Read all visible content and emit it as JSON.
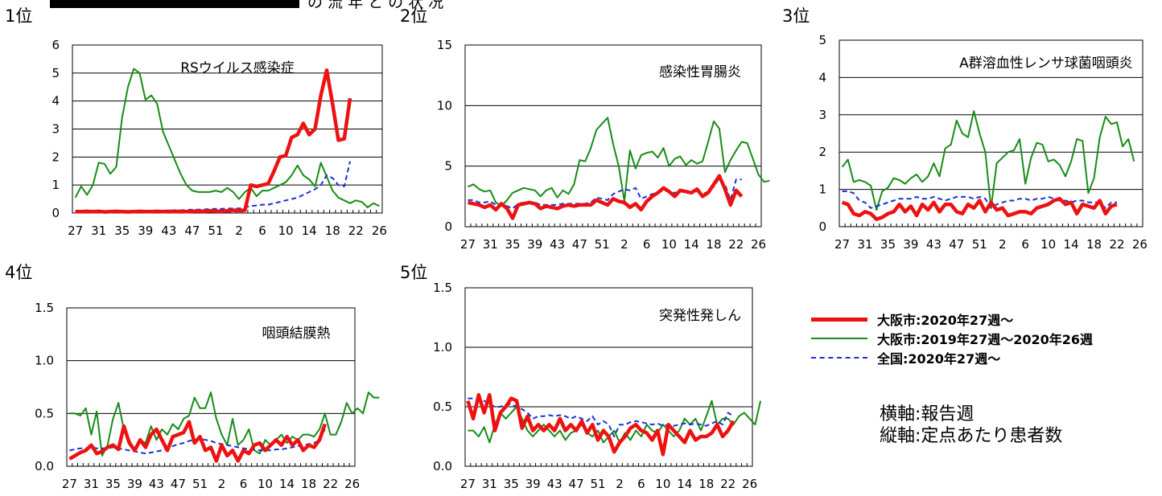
{
  "colors": {
    "osaka_current": "#ee1111",
    "osaka_previous": "#178c17",
    "national": "#1a2fd6"
  },
  "header": {
    "partial_title": "の 流 年 と の 状 况"
  },
  "x_tick_labels": [
    "27",
    "31",
    "35",
    "39",
    "43",
    "47",
    "51",
    "2",
    "6",
    "10",
    "14",
    "18",
    "22",
    "26"
  ],
  "legend": [
    {
      "series": "osaka_current",
      "label": "大阪市:2020年27週〜"
    },
    {
      "series": "osaka_previous",
      "label": "大阪市:2019年27週〜2020年26週"
    },
    {
      "series": "national",
      "label": "全国:2020年27週〜"
    }
  ],
  "axis_note": {
    "x": "横軸:報告週",
    "y": "縦軸:定点あたり患者数"
  },
  "chart_data": [
    {
      "type": "line",
      "rank": "1位",
      "title": "RSウイルス感染症",
      "ylim": [
        0,
        6
      ],
      "yticks": [
        "0",
        "1",
        "2",
        "3",
        "4",
        "5",
        "6"
      ],
      "grid": true,
      "series": [
        {
          "key": "osaka_current",
          "values": [
            0.05,
            0.05,
            0.06,
            0.05,
            0.06,
            0.04,
            0.05,
            0.06,
            0.05,
            0.04,
            0.05,
            0.06,
            0.05,
            0.05,
            0.06,
            0.05,
            0.06,
            0.05,
            0.06,
            0.05,
            0.06,
            0.07,
            0.06,
            0.08,
            0.07,
            0.06,
            0.08,
            0.1,
            0.09,
            0.1,
            1.0,
            0.95,
            1.0,
            1.05,
            1.5,
            2.0,
            2.05,
            2.7,
            2.8,
            3.2,
            2.8,
            3.0,
            4.2,
            5.1,
            3.9,
            2.6,
            2.65,
            4.1
          ]
        },
        {
          "key": "osaka_previous",
          "values": [
            0.55,
            0.95,
            0.65,
            1.0,
            1.8,
            1.75,
            1.4,
            1.65,
            3.4,
            4.5,
            5.15,
            5.0,
            4.05,
            4.2,
            3.9,
            2.9,
            2.4,
            1.9,
            1.4,
            1.0,
            0.8,
            0.75,
            0.75,
            0.75,
            0.8,
            0.75,
            0.9,
            0.75,
            0.5,
            0.75,
            0.9,
            0.6,
            0.8,
            0.8,
            0.9,
            1.0,
            1.1,
            1.35,
            1.7,
            1.35,
            1.2,
            0.95,
            1.8,
            1.3,
            0.8,
            0.55,
            0.45,
            0.35,
            0.45,
            0.4,
            0.2,
            0.35,
            0.25
          ]
        },
        {
          "key": "national",
          "values": [
            0.05,
            0.05,
            0.05,
            0.06,
            0.05,
            0.05,
            0.06,
            0.06,
            0.06,
            0.06,
            0.07,
            0.07,
            0.07,
            0.08,
            0.08,
            0.09,
            0.09,
            0.1,
            0.1,
            0.11,
            0.12,
            0.12,
            0.13,
            0.14,
            0.15,
            0.15,
            0.16,
            0.16,
            0.16,
            0.2,
            0.25,
            0.27,
            0.3,
            0.3,
            0.35,
            0.4,
            0.45,
            0.5,
            0.55,
            0.65,
            0.75,
            0.85,
            1.0,
            1.35,
            1.25,
            1.0,
            0.95,
            1.85
          ]
        }
      ]
    },
    {
      "type": "line",
      "rank": "2位",
      "title": "感染性胃腸炎",
      "ylim": [
        0,
        15
      ],
      "yticks": [
        "0",
        "5",
        "10",
        "15"
      ],
      "grid": true,
      "series": [
        {
          "key": "osaka_current",
          "values": [
            2.0,
            1.9,
            1.8,
            1.6,
            1.8,
            1.4,
            1.9,
            1.5,
            0.7,
            1.8,
            1.9,
            2.0,
            1.9,
            1.5,
            1.7,
            1.6,
            1.5,
            1.7,
            1.8,
            1.7,
            1.8,
            1.8,
            1.8,
            2.2,
            2.0,
            1.8,
            2.3,
            2.1,
            2.0,
            1.6,
            1.9,
            1.4,
            2.1,
            2.5,
            2.8,
            3.2,
            2.9,
            2.5,
            3.0,
            2.9,
            2.8,
            3.1,
            2.5,
            2.8,
            3.5,
            4.2,
            3.1,
            1.8,
            3.0,
            2.5
          ]
        },
        {
          "key": "osaka_previous",
          "values": [
            3.3,
            3.5,
            3.1,
            2.9,
            3.0,
            2.0,
            1.7,
            2.2,
            2.8,
            3.0,
            3.2,
            3.1,
            3.0,
            2.5,
            3.0,
            3.2,
            2.4,
            3.0,
            2.7,
            3.5,
            5.5,
            5.4,
            6.5,
            8.0,
            8.5,
            9.0,
            6.8,
            5.0,
            2.1,
            6.3,
            4.8,
            5.9,
            6.1,
            6.2,
            5.7,
            6.5,
            5.0,
            5.6,
            5.8,
            5.1,
            5.5,
            5.2,
            5.4,
            7.0,
            8.7,
            8.1,
            4.5,
            5.5,
            6.3,
            7.0,
            6.9,
            5.6,
            4.3,
            3.7,
            3.8
          ]
        },
        {
          "key": "national",
          "values": [
            2.2,
            2.2,
            2.0,
            2.0,
            2.1,
            1.8,
            1.9,
            1.7,
            1.5,
            1.9,
            2.0,
            2.0,
            2.0,
            1.8,
            1.8,
            1.8,
            1.8,
            1.9,
            1.9,
            1.9,
            1.9,
            1.9,
            2.0,
            2.4,
            2.3,
            2.2,
            2.7,
            2.9,
            3.1,
            3.0,
            3.2,
            2.3,
            2.5,
            2.7,
            2.8,
            3.0,
            2.9,
            2.8,
            2.9,
            2.9,
            2.8,
            2.9,
            2.7,
            2.9,
            3.3,
            4.0,
            3.5,
            2.2,
            3.9,
            3.9
          ]
        }
      ]
    },
    {
      "type": "line",
      "rank": "3位",
      "title": "A群溶血性レンサ球菌咽頭炎",
      "ylim": [
        0,
        5
      ],
      "yticks": [
        "0",
        "1",
        "2",
        "3",
        "4",
        "5"
      ],
      "grid": true,
      "series": [
        {
          "key": "osaka_current",
          "values": [
            0.65,
            0.6,
            0.35,
            0.3,
            0.4,
            0.35,
            0.2,
            0.25,
            0.35,
            0.4,
            0.6,
            0.4,
            0.55,
            0.3,
            0.6,
            0.45,
            0.65,
            0.4,
            0.6,
            0.6,
            0.4,
            0.35,
            0.6,
            0.5,
            0.7,
            0.4,
            0.65,
            0.45,
            0.5,
            0.3,
            0.35,
            0.4,
            0.4,
            0.35,
            0.5,
            0.55,
            0.6,
            0.7,
            0.75,
            0.6,
            0.65,
            0.35,
            0.6,
            0.55,
            0.5,
            0.7,
            0.35,
            0.55,
            0.6
          ]
        },
        {
          "key": "osaka_previous",
          "values": [
            1.6,
            1.8,
            1.2,
            1.25,
            1.2,
            1.1,
            0.45,
            0.95,
            1.05,
            1.3,
            1.25,
            1.15,
            1.3,
            1.4,
            1.2,
            1.35,
            1.7,
            1.35,
            2.1,
            2.2,
            2.85,
            2.5,
            2.4,
            3.1,
            2.5,
            2.0,
            0.5,
            1.7,
            1.85,
            2.0,
            2.05,
            2.35,
            1.15,
            1.85,
            2.25,
            2.2,
            1.75,
            1.8,
            1.65,
            1.35,
            1.75,
            2.35,
            2.3,
            0.9,
            1.3,
            2.4,
            2.95,
            2.75,
            2.8,
            2.15,
            2.35,
            1.75
          ]
        },
        {
          "key": "national",
          "values": [
            0.95,
            0.95,
            0.9,
            0.7,
            0.65,
            0.5,
            0.55,
            0.6,
            0.65,
            0.7,
            0.75,
            0.75,
            0.75,
            0.8,
            0.75,
            0.75,
            0.8,
            0.75,
            0.7,
            0.75,
            0.8,
            0.8,
            0.8,
            0.75,
            0.8,
            0.75,
            0.5,
            0.6,
            0.65,
            0.7,
            0.7,
            0.75,
            0.75,
            0.7,
            0.75,
            0.75,
            0.8,
            0.75,
            0.7,
            0.7,
            0.65,
            0.7,
            0.7,
            0.65,
            0.65,
            0.65,
            0.5,
            0.65,
            0.65
          ]
        }
      ]
    },
    {
      "type": "line",
      "rank": "4位",
      "title": "咽頭結膜熱",
      "ylim": [
        0,
        1.5
      ],
      "yticks": [
        "0.0",
        "0.5",
        "1.0",
        "1.5"
      ],
      "grid": true,
      "series": [
        {
          "key": "osaka_current",
          "values": [
            0.07,
            0.1,
            0.13,
            0.15,
            0.2,
            0.12,
            0.14,
            0.18,
            0.2,
            0.16,
            0.38,
            0.22,
            0.15,
            0.25,
            0.18,
            0.3,
            0.35,
            0.25,
            0.15,
            0.28,
            0.3,
            0.32,
            0.42,
            0.22,
            0.28,
            0.15,
            0.18,
            0.05,
            0.2,
            0.1,
            0.15,
            0.05,
            0.15,
            0.12,
            0.2,
            0.22,
            0.15,
            0.2,
            0.25,
            0.2,
            0.28,
            0.2,
            0.25,
            0.15,
            0.2,
            0.18,
            0.25,
            0.4
          ]
        },
        {
          "key": "osaka_previous",
          "values": [
            0.5,
            0.5,
            0.48,
            0.55,
            0.3,
            0.52,
            0.1,
            0.2,
            0.45,
            0.6,
            0.35,
            0.25,
            0.15,
            0.25,
            0.22,
            0.38,
            0.25,
            0.35,
            0.3,
            0.4,
            0.35,
            0.45,
            0.48,
            0.65,
            0.55,
            0.55,
            0.7,
            0.45,
            0.3,
            0.2,
            0.45,
            0.2,
            0.25,
            0.35,
            0.15,
            0.12,
            0.25,
            0.2,
            0.25,
            0.3,
            0.22,
            0.28,
            0.25,
            0.3,
            0.3,
            0.28,
            0.35,
            0.5,
            0.3,
            0.3,
            0.42,
            0.6,
            0.5,
            0.55,
            0.5,
            0.7,
            0.65,
            0.65
          ]
        },
        {
          "key": "national",
          "values": [
            0.15,
            0.16,
            0.17,
            0.17,
            0.18,
            0.17,
            0.17,
            0.17,
            0.18,
            0.17,
            0.16,
            0.15,
            0.14,
            0.13,
            0.12,
            0.13,
            0.14,
            0.15,
            0.17,
            0.19,
            0.21,
            0.22,
            0.24,
            0.25,
            0.26,
            0.25,
            0.24,
            0.22,
            0.21,
            0.2,
            0.19,
            0.18,
            0.17,
            0.16,
            0.16,
            0.15,
            0.15,
            0.15,
            0.16,
            0.16,
            0.17,
            0.18,
            0.19,
            0.2,
            0.21,
            0.22,
            0.25,
            0.35
          ]
        }
      ]
    },
    {
      "type": "line",
      "rank": "5位",
      "title": "突発性発しん",
      "ylim": [
        0,
        1.5
      ],
      "yticks": [
        "0.0",
        "0.5",
        "1.0",
        "1.5"
      ],
      "grid": true,
      "series": [
        {
          "key": "osaka_current",
          "values": [
            0.55,
            0.4,
            0.6,
            0.45,
            0.6,
            0.3,
            0.45,
            0.5,
            0.57,
            0.55,
            0.32,
            0.42,
            0.3,
            0.35,
            0.3,
            0.35,
            0.3,
            0.4,
            0.3,
            0.35,
            0.3,
            0.38,
            0.28,
            0.35,
            0.22,
            0.3,
            0.25,
            0.12,
            0.2,
            0.25,
            0.32,
            0.35,
            0.3,
            0.28,
            0.22,
            0.3,
            0.1,
            0.35,
            0.3,
            0.25,
            0.2,
            0.3,
            0.22,
            0.25,
            0.25,
            0.28,
            0.35,
            0.25,
            0.3,
            0.38
          ]
        },
        {
          "key": "osaka_previous",
          "values": [
            0.3,
            0.3,
            0.25,
            0.33,
            0.2,
            0.35,
            0.45,
            0.4,
            0.45,
            0.5,
            0.4,
            0.3,
            0.25,
            0.3,
            0.35,
            0.3,
            0.25,
            0.3,
            0.22,
            0.28,
            0.3,
            0.35,
            0.28,
            0.25,
            0.3,
            0.2,
            0.25,
            0.3,
            0.2,
            0.28,
            0.22,
            0.3,
            0.25,
            0.35,
            0.3,
            0.28,
            0.35,
            0.3,
            0.25,
            0.3,
            0.4,
            0.35,
            0.4,
            0.3,
            0.42,
            0.55,
            0.35,
            0.4,
            0.4,
            0.35,
            0.42,
            0.45,
            0.4,
            0.35,
            0.55
          ]
        },
        {
          "key": "national",
          "values": [
            0.57,
            0.57,
            0.55,
            0.55,
            0.52,
            0.5,
            0.5,
            0.52,
            0.52,
            0.5,
            0.48,
            0.45,
            0.4,
            0.42,
            0.42,
            0.43,
            0.42,
            0.43,
            0.42,
            0.4,
            0.42,
            0.4,
            0.38,
            0.42,
            0.35,
            0.38,
            0.35,
            0.25,
            0.35,
            0.35,
            0.37,
            0.38,
            0.37,
            0.36,
            0.35,
            0.36,
            0.34,
            0.35,
            0.34,
            0.35,
            0.36,
            0.35,
            0.36,
            0.35,
            0.34,
            0.36,
            0.38,
            0.35,
            0.45,
            0.42
          ]
        }
      ]
    }
  ]
}
